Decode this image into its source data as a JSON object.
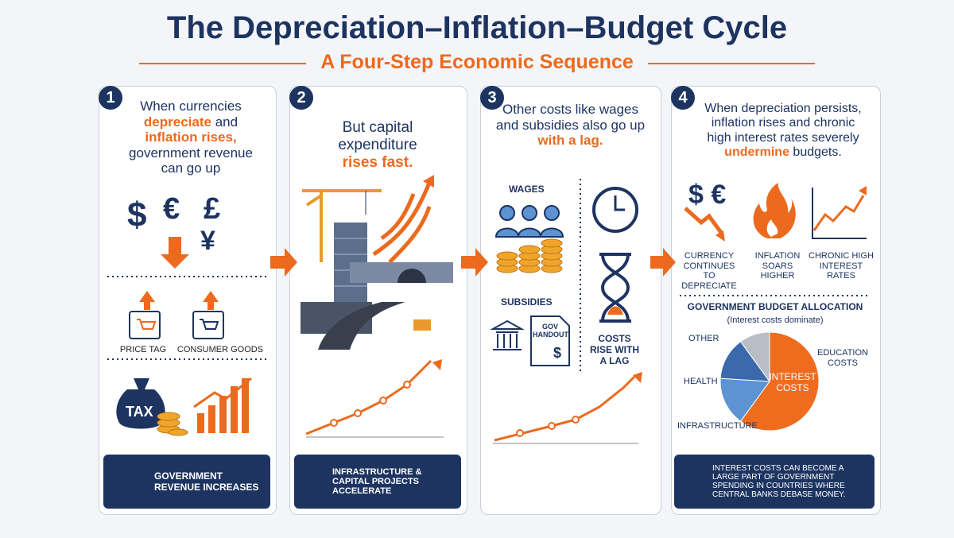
{
  "header": {
    "title": "The Depreciation–Inflation–Budget Cycle",
    "subtitle": "A Four-Step Economic Sequence"
  },
  "steps": [
    {
      "number": "1",
      "text": {
        "line1": "When currencies",
        "highlight1": "depreciate",
        "join": "and",
        "highlight2": "inflation rises,",
        "line3": "government revenue",
        "line4": "can go up"
      },
      "symbols": [
        "$",
        "€",
        "£",
        "¥"
      ],
      "labels": [
        "PRICE TAG",
        "CONSUMER GOODS"
      ],
      "bag": "TAX",
      "footer": "GOVERNMENT REVENUE INCREASES"
    },
    {
      "number": "2",
      "text": {
        "line1": "But capital",
        "line2": "expenditure",
        "highlight": "rises fast."
      },
      "footer": "INFRASTRUCTURE & CAPITAL PROJECTS ACCELERATE"
    },
    {
      "number": "3",
      "text": {
        "line1": "Other costs like wages",
        "line2": "and subsidies also go up",
        "highlight": "with a lag."
      },
      "labels": {
        "wages": "WAGES",
        "subsidies": "SUBSIDIES",
        "handout": "GOV HANDOUT",
        "dollar": "$",
        "lag": "COSTS RISE WITH A LAG"
      }
    },
    {
      "number": "4",
      "text": {
        "line1": "When depreciation persists,",
        "line2": "inflation rises and chronic",
        "line3": "high interest rates severely",
        "highlight": "undermine",
        "tail": "budgets."
      },
      "symbols": "$ €",
      "icons": [
        "CURRENCY CONTINUES TO DEPRECIATE",
        "INFLATION SOARS HIGHER",
        "CHRONIC HIGH INTEREST RATES"
      ],
      "budget": {
        "title": "GOVERNMENT BUDGET ALLOCATION",
        "subtitle": "(Interest costs dominate)",
        "extra_label": "EDUCATION COSTS",
        "slices": [
          {
            "label": "INTEREST COSTS",
            "value": 60,
            "color": "#ef6c1f"
          },
          {
            "label": "INFRASTRUCTURE",
            "value": 16,
            "color": "#5b93d3"
          },
          {
            "label": "HEALTH",
            "value": 14,
            "color": "#3b69ab"
          },
          {
            "label": "OTHER",
            "value": 10,
            "color": "#b9bdc5"
          }
        ]
      },
      "footer": "INTEREST COSTS CAN BECOME A LARGE PART OF GOVERNMENT SPENDING IN COUNTRIES WHERE CENTRAL BANKS DEBASE MONEY."
    }
  ]
}
